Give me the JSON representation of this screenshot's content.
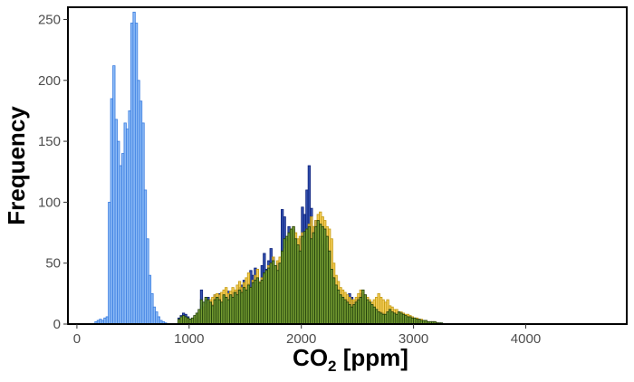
{
  "chart_data": {
    "type": "bar",
    "subtype": "overlaid-histogram",
    "title": "",
    "xlabel_main": "CO",
    "xlabel_sub": "2",
    "xlabel_rest": " [ppm]",
    "ylabel": "Frequency",
    "xlim": [
      -80,
      4900
    ],
    "ylim": [
      0,
      260
    ],
    "x_ticks": [
      0,
      1000,
      2000,
      3000,
      4000
    ],
    "y_ticks": [
      0,
      50,
      100,
      150,
      200,
      250
    ],
    "bin_width": 20,
    "grid": false,
    "legend": "none",
    "series": [
      {
        "color_fill": "#7fb3f5",
        "color_edge": "#3a7de0",
        "x_start": 160,
        "values": [
          2,
          3,
          4,
          3,
          5,
          6,
          100,
          185,
          212,
          168,
          150,
          130,
          140,
          165,
          160,
          175,
          247,
          256,
          247,
          200,
          183,
          165,
          110,
          70,
          40,
          25,
          14,
          10,
          6,
          3,
          2,
          1
        ]
      },
      {
        "color_fill": "#1f3fa6",
        "color_edge": "#0a1f7a",
        "x_start": 900,
        "values": [
          5,
          7,
          9,
          8,
          6,
          4,
          3,
          5,
          4,
          6,
          28,
          14,
          20,
          22,
          18,
          16,
          24,
          20,
          25,
          18,
          22,
          19,
          27,
          23,
          26,
          22,
          28,
          30,
          32,
          36,
          28,
          33,
          44,
          40,
          46,
          37,
          32,
          48,
          58,
          45,
          52,
          62,
          55,
          48,
          50,
          42,
          94,
          88,
          70,
          80,
          75,
          78,
          65,
          60,
          70,
          96,
          90,
          110,
          130,
          95,
          80,
          85,
          70,
          72,
          65,
          70,
          62,
          55,
          40,
          38,
          30,
          25,
          22,
          20,
          18,
          20,
          25,
          22,
          18,
          20,
          22,
          25,
          24,
          22,
          18,
          16,
          14,
          12,
          12,
          10,
          10,
          9,
          8,
          8,
          7,
          7,
          6,
          6,
          5,
          5,
          4,
          4,
          3,
          3,
          3,
          2,
          2,
          2,
          2,
          1
        ]
      },
      {
        "color_fill": "#f0c030",
        "color_edge": "#c49a10",
        "x_start": 900,
        "values": [
          3,
          5,
          6,
          5,
          4,
          3,
          4,
          6,
          8,
          10,
          12,
          14,
          16,
          18,
          20,
          22,
          24,
          25,
          24,
          26,
          28,
          30,
          25,
          27,
          30,
          28,
          32,
          35,
          30,
          34,
          38,
          42,
          30,
          36,
          40,
          45,
          35,
          38,
          40,
          44,
          48,
          50,
          55,
          48,
          52,
          55,
          58,
          62,
          68,
          72,
          78,
          80,
          75,
          70,
          72,
          75,
          70,
          78,
          82,
          88,
          80,
          85,
          90,
          92,
          88,
          85,
          80,
          78,
          70,
          50,
          40,
          35,
          30,
          28,
          26,
          24,
          22,
          20,
          20,
          22,
          25,
          28,
          26,
          24,
          22,
          20,
          18,
          20,
          22,
          25,
          22,
          20,
          18,
          20,
          15,
          14,
          12,
          12,
          10,
          10,
          9,
          8,
          8,
          7,
          6,
          5,
          5,
          4,
          4,
          3,
          3,
          2,
          2,
          2,
          2,
          1
        ]
      },
      {
        "color_fill": "#6b9a30",
        "color_edge": "#1e3d0a",
        "x_start": 900,
        "values": [
          4,
          6,
          7,
          6,
          5,
          4,
          5,
          7,
          9,
          12,
          20,
          18,
          22,
          20,
          18,
          15,
          20,
          22,
          20,
          18,
          24,
          22,
          20,
          24,
          22,
          26,
          24,
          28,
          26,
          30,
          28,
          32,
          30,
          34,
          36,
          38,
          34,
          36,
          42,
          44,
          46,
          50,
          52,
          48,
          44,
          50,
          60,
          70,
          72,
          75,
          78,
          80,
          70,
          65,
          60,
          72,
          76,
          78,
          80,
          70,
          75,
          80,
          85,
          82,
          80,
          78,
          72,
          60,
          45,
          38,
          32,
          28,
          24,
          22,
          20,
          18,
          16,
          14,
          16,
          18,
          20,
          22,
          28,
          24,
          20,
          18,
          16,
          14,
          12,
          10,
          9,
          8,
          8,
          10,
          12,
          10,
          9,
          8,
          10,
          9,
          8,
          7,
          6,
          6,
          5,
          5,
          4,
          4,
          3,
          3,
          3,
          2,
          2,
          2,
          2,
          1,
          1,
          1
        ]
      }
    ]
  }
}
